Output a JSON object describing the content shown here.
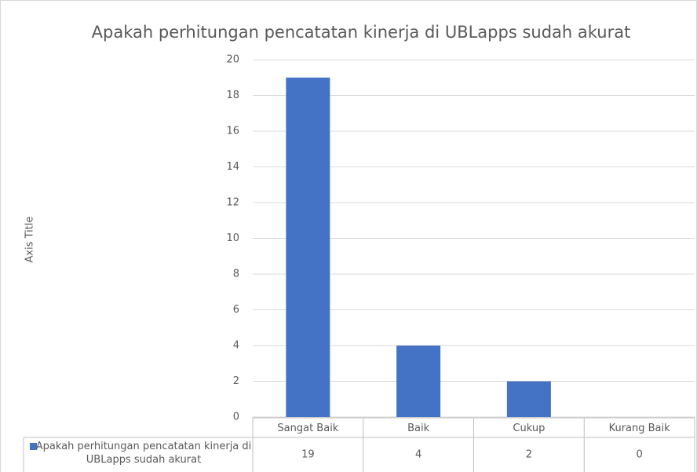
{
  "chart_data": {
    "type": "bar",
    "title": "Apakah perhitungan pencatatan kinerja di UBLapps sudah akurat",
    "y_axis_label": "Axis Title",
    "categories": [
      "Sangat Baik",
      "Baik",
      "Cukup",
      "Kurang Baik"
    ],
    "series": [
      {
        "name": "Apakah perhitungan pencatatan kinerja di UBLapps sudah akurat",
        "color": "#4472c4",
        "values": [
          19,
          4,
          2,
          0
        ]
      }
    ],
    "ylim": [
      0,
      20
    ],
    "yticks": [
      0,
      2,
      4,
      6,
      8,
      10,
      12,
      14,
      16,
      18,
      20
    ],
    "grid": true,
    "data_table": true
  }
}
